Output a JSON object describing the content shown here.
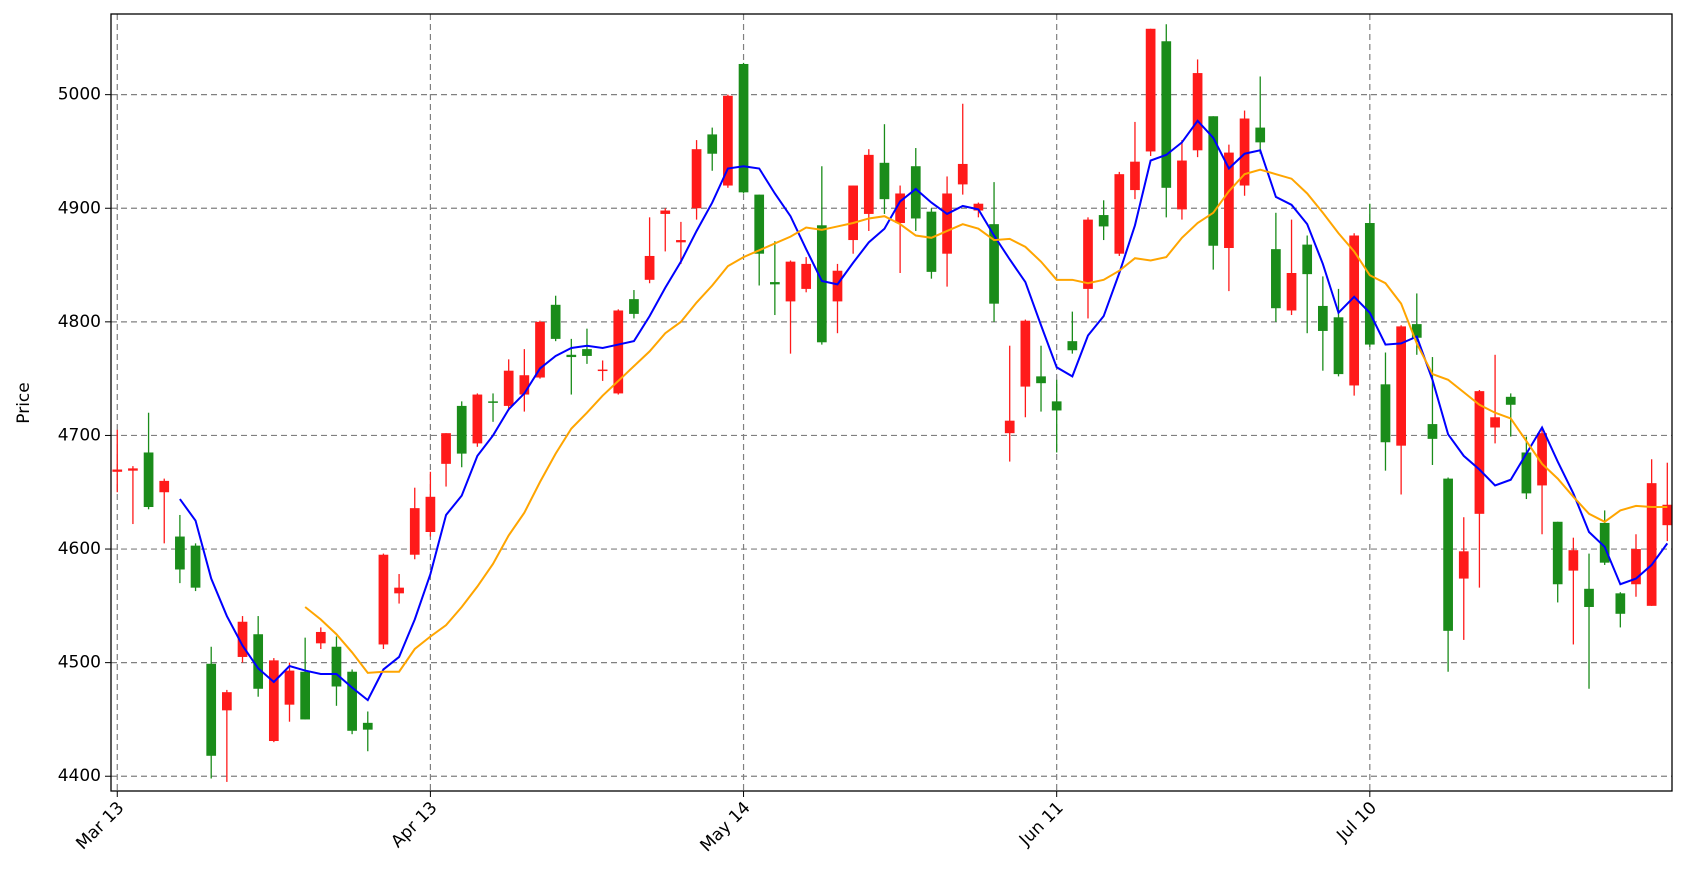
{
  "chart_data": {
    "type": "candlestick",
    "ylabel": "Price",
    "categories": [
      "Mar 13",
      null,
      null,
      null,
      null,
      null,
      null,
      null,
      null,
      null,
      null,
      null,
      null,
      null,
      null,
      null,
      null,
      null,
      null,
      null,
      "Apr 13",
      null,
      null,
      null,
      null,
      null,
      null,
      null,
      null,
      null,
      null,
      null,
      null,
      null,
      null,
      null,
      null,
      null,
      null,
      null,
      "May 14",
      null,
      null,
      null,
      null,
      null,
      null,
      null,
      null,
      null,
      null,
      null,
      null,
      null,
      null,
      null,
      null,
      null,
      null,
      null,
      "Jun 11",
      null,
      null,
      null,
      null,
      null,
      null,
      null,
      null,
      null,
      null,
      null,
      null,
      null,
      null,
      null,
      null,
      null,
      null,
      null,
      "Jul 10",
      null,
      null,
      null,
      null,
      null,
      null,
      null,
      null,
      null,
      null,
      null,
      null,
      null,
      null,
      null,
      null,
      null,
      null,
      null
    ],
    "open": [
      4668,
      4669,
      4685,
      4650,
      4611,
      4603,
      4499,
      4458,
      4505,
      4525,
      4431,
      4463,
      4492,
      4517,
      4514,
      4492,
      4447,
      4516,
      4561,
      4595,
      4615,
      4675,
      4726,
      4693,
      4730,
      4726,
      4736,
      4751,
      4815,
      4771,
      4776,
      4757,
      4737,
      4820,
      4837,
      4895,
      4870,
      4900,
      4965,
      4920,
      5027,
      4912,
      4835,
      4818,
      4829,
      4885,
      4818,
      4872,
      4895,
      4940,
      4887,
      4937,
      4897,
      4860,
      4921,
      4898,
      4886,
      4702,
      4743,
      4752,
      4730,
      4783,
      4829,
      4894,
      4860,
      4916,
      4950,
      5047,
      4899,
      4951,
      4981,
      4865,
      4920,
      4971,
      4864,
      4810,
      4868,
      4814,
      4804,
      4744,
      4887,
      4745,
      4691,
      4798,
      4710,
      4662,
      4574,
      4631,
      4707,
      4734,
      4685,
      4656,
      4624,
      4581,
      4565,
      4623,
      4561,
      4569,
      4550,
      4621
    ],
    "high": [
      4705,
      4673,
      4720,
      4662,
      4630,
      4605,
      4514,
      4476,
      4541,
      4541,
      4504,
      4500,
      4522,
      4531,
      4523,
      4494,
      4457,
      4596,
      4578,
      4654,
      4668,
      4702,
      4730,
      4737,
      4737,
      4767,
      4776,
      4801,
      4823,
      4785,
      4794,
      4766,
      4811,
      4828,
      4892,
      4900,
      4888,
      4960,
      4971,
      5000,
      5028,
      4912,
      4871,
      4854,
      4857,
      4937,
      4851,
      4920,
      4952,
      4974,
      4920,
      4953,
      4900,
      4928,
      4992,
      4905,
      4923,
      4779,
      4802,
      4779,
      4749,
      4809,
      4892,
      4907,
      4932,
      4976,
      5058,
      5062,
      4960,
      5031,
      4981,
      4956,
      4986,
      5016,
      4896,
      4890,
      4876,
      4840,
      4829,
      4878,
      4904,
      4773,
      4797,
      4825,
      4769,
      4663,
      4628,
      4740,
      4771,
      4737,
      4699,
      4705,
      4624,
      4610,
      4596,
      4634,
      4562,
      4613,
      4679,
      4676
    ],
    "low": [
      4650,
      4622,
      4635,
      4605,
      4570,
      4563,
      4398,
      4395,
      4500,
      4470,
      4430,
      4448,
      4450,
      4512,
      4462,
      4437,
      4422,
      4512,
      4552,
      4591,
      4611,
      4655,
      4672,
      4690,
      4712,
      4722,
      4721,
      4750,
      4783,
      4736,
      4763,
      4748,
      4736,
      4803,
      4834,
      4862,
      4851,
      4890,
      4933,
      4918,
      4913,
      4832,
      4806,
      4772,
      4826,
      4780,
      4790,
      4860,
      4880,
      4895,
      4843,
      4880,
      4838,
      4831,
      4912,
      4892,
      4800,
      4677,
      4716,
      4721,
      4685,
      4772,
      4803,
      4872,
      4858,
      4908,
      4946,
      4892,
      4890,
      4945,
      4846,
      4827,
      4911,
      4948,
      4800,
      4806,
      4790,
      4757,
      4752,
      4735,
      4778,
      4669,
      4648,
      4771,
      4674,
      4492,
      4520,
      4566,
      4693,
      4699,
      4644,
      4613,
      4553,
      4516,
      4477,
      4586,
      4531,
      4558,
      4550,
      4607
    ],
    "close": [
      4670,
      4671,
      4637,
      4660,
      4582,
      4566,
      4418,
      4474,
      4536,
      4477,
      4502,
      4493,
      4450,
      4527,
      4479,
      4440,
      4441,
      4595,
      4566,
      4636,
      4646,
      4702,
      4684,
      4736,
      4729,
      4757,
      4753,
      4800,
      4785,
      4769,
      4770,
      4758,
      4810,
      4807,
      4858,
      4898,
      4872,
      4952,
      4948,
      4999,
      4914,
      4860,
      4833,
      4853,
      4851,
      4782,
      4845,
      4920,
      4947,
      4908,
      4913,
      4891,
      4844,
      4913,
      4939,
      4904,
      4816,
      4713,
      4801,
      4746,
      4722,
      4775,
      4890,
      4884,
      4930,
      4941,
      5058,
      4918,
      4942,
      5019,
      4867,
      4949,
      4979,
      4958,
      4812,
      4843,
      4842,
      4792,
      4754,
      4876,
      4780,
      4694,
      4796,
      4786,
      4697,
      4528,
      4598,
      4739,
      4716,
      4727,
      4649,
      4702,
      4569,
      4599,
      4549,
      4588,
      4543,
      4600,
      4658,
      4639
    ],
    "up_color": "#ff1a1a",
    "down_color": "#1a8c1a",
    "series": [
      {
        "color": "#0000ff",
        "values": [
          null,
          null,
          null,
          null,
          4644,
          4625,
          4574,
          4541,
          4515,
          4495,
          4483,
          4497,
          4493,
          4490,
          4490,
          4478,
          4467,
          4494,
          4505,
          4538,
          4578,
          4630,
          4647,
          4682,
          4700,
          4723,
          4737,
          4759,
          4770,
          4777,
          4779,
          4777,
          4780,
          4783,
          4805,
          4830,
          4853,
          4880,
          4905,
          4935,
          4937,
          4935,
          4913,
          4893,
          4864,
          4836,
          4833,
          4852,
          4870,
          4882,
          4906,
          4917,
          4905,
          4895,
          4902,
          4899,
          4876,
          4855,
          4835,
          4797,
          4760,
          4752,
          4788,
          4805,
          4843,
          4885,
          4942,
          4947,
          4958,
          4977,
          4962,
          4935,
          4948,
          4951,
          4910,
          4903,
          4886,
          4851,
          4808,
          4822,
          4808,
          4780,
          4781,
          4787,
          4749,
          4701,
          4682,
          4670,
          4656,
          4661,
          4684,
          4707,
          4677,
          4649,
          4615,
          4602,
          4569,
          4574,
          4586,
          4605
        ]
      },
      {
        "color": "#ffa500",
        "values": [
          null,
          null,
          null,
          null,
          null,
          null,
          null,
          null,
          null,
          null,
          null,
          null,
          4549,
          4538,
          4525,
          4509,
          4491,
          4492,
          4492,
          4512,
          4523,
          4533,
          4549,
          4567,
          4587,
          4612,
          4632,
          4659,
          4684,
          4706,
          4720,
          4735,
          4748,
          4761,
          4774,
          4790,
          4800,
          4817,
          4832,
          4849,
          4857,
          4863,
          4869,
          4875,
          4883,
          4881,
          4884,
          4887,
          4891,
          4893,
          4886,
          4876,
          4874,
          4880,
          4886,
          4882,
          4872,
          4873,
          4866,
          4853,
          4837,
          4837,
          4834,
          4837,
          4845,
          4856,
          4854,
          4857,
          4874,
          4887,
          4896,
          4915,
          4930,
          4934,
          4930,
          4926,
          4913,
          4896,
          4878,
          4862,
          4841,
          4834,
          4816,
          4781,
          4754,
          4749,
          4738,
          4727,
          4720,
          4715,
          4695,
          4675,
          4662,
          4646,
          4631,
          4624,
          4634,
          4638,
          4637,
          4637
        ]
      }
    ],
    "xlim": [
      -0.4,
      99.3
    ],
    "ylim": [
      4387,
      5071
    ],
    "yticks": [
      4400,
      4500,
      4600,
      4700,
      4800,
      4900,
      5000
    ],
    "grid": true
  }
}
